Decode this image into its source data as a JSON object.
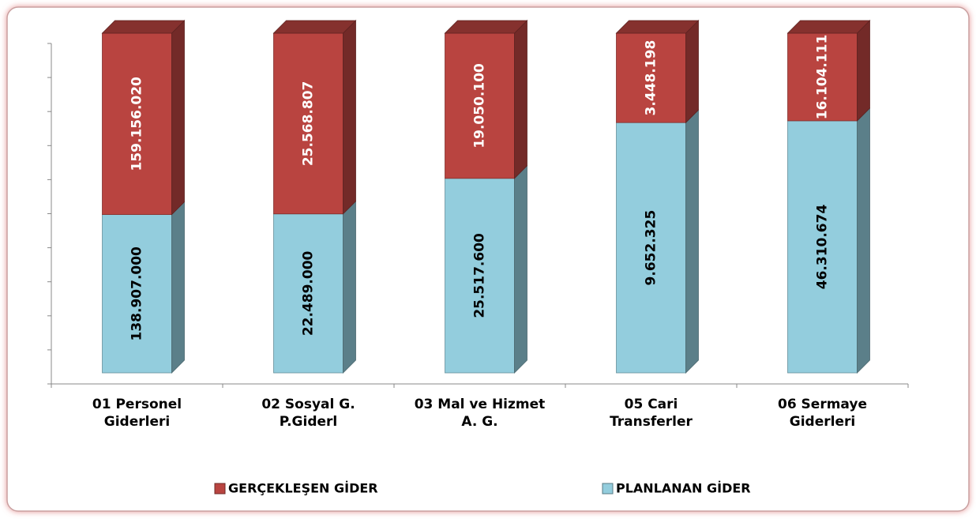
{
  "chart_data": {
    "type": "stacked_bar_100",
    "categories": [
      "01 Personel\nGiderleri",
      "02 Sosyal G.\nP.Giderl",
      "03 Mal ve Hizmet\nA. G.",
      "05 Cari\nTransferler",
      "06 Sermaye\nGiderleri"
    ],
    "series": [
      {
        "name": "PLANLANAN GİDER",
        "color": "#93cddd",
        "values": [
          138907000,
          22489000,
          25517600,
          9652325,
          46310674
        ],
        "value_labels": [
          "138.907.000",
          "22.489.000",
          "25.517.600",
          "9.652.325",
          "46.310.674"
        ]
      },
      {
        "name": "GERÇEKLEŞEN GİDER",
        "color": "#b94440",
        "values": [
          159156020,
          25568807,
          19050100,
          3448198,
          16104111
        ],
        "value_labels": [
          "159.156.020",
          "25.568.807",
          "19.050.100",
          "3.448.198",
          "16.104.111"
        ]
      }
    ],
    "ylim": [
      0,
      100
    ],
    "yticks": [
      0,
      10,
      20,
      30,
      40,
      50,
      60,
      70,
      80,
      90,
      100
    ]
  }
}
